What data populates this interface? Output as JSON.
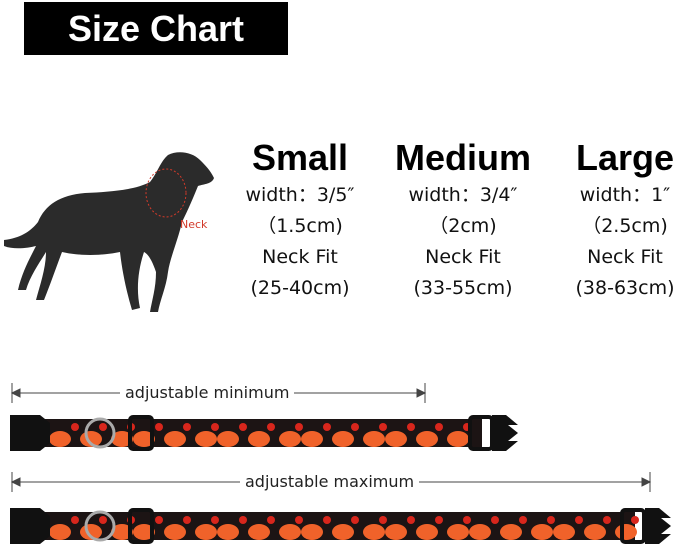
{
  "title": "Size Chart",
  "dog": {
    "neck_label": "Neck",
    "neck_color": "#d23a2a"
  },
  "sizes": [
    {
      "name": "Small",
      "width": "width：3/5″",
      "width_cm": "（1.5cm)",
      "fit_label": "Neck Fit",
      "fit": "(25-40cm)"
    },
    {
      "name": "Medium",
      "width": "width：3/4″",
      "width_cm": "（2cm)",
      "fit_label": "Neck Fit",
      "fit": "(33-55cm)"
    },
    {
      "name": "Large",
      "width": "width：1″",
      "width_cm": "（2.5cm)",
      "fit_label": "Neck Fit",
      "fit": "(38-63cm)"
    }
  ],
  "collars": {
    "min_label": "adjustable minimum",
    "max_label": "adjustable maximum",
    "pattern_colors": {
      "base": "#1c1414",
      "pumpkin": "#f0622a",
      "leaf": "#d8261c"
    }
  }
}
